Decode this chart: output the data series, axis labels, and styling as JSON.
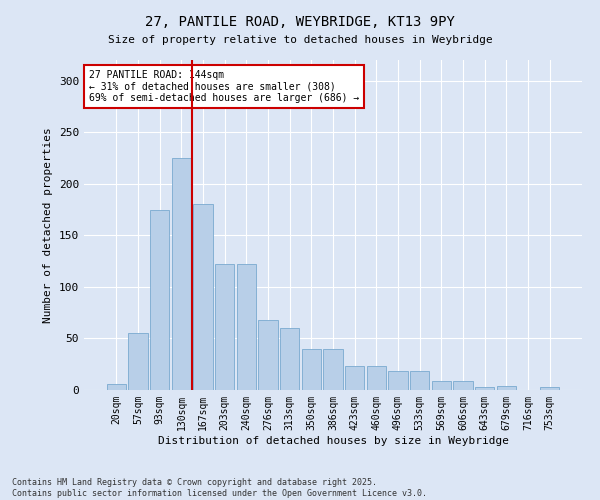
{
  "title_line1": "27, PANTILE ROAD, WEYBRIDGE, KT13 9PY",
  "title_line2": "Size of property relative to detached houses in Weybridge",
  "xlabel": "Distribution of detached houses by size in Weybridge",
  "ylabel": "Number of detached properties",
  "categories": [
    "20sqm",
    "57sqm",
    "93sqm",
    "130sqm",
    "167sqm",
    "203sqm",
    "240sqm",
    "276sqm",
    "313sqm",
    "350sqm",
    "386sqm",
    "423sqm",
    "460sqm",
    "496sqm",
    "533sqm",
    "569sqm",
    "606sqm",
    "643sqm",
    "679sqm",
    "716sqm",
    "753sqm"
  ],
  "values": [
    6,
    55,
    175,
    225,
    180,
    122,
    122,
    68,
    60,
    40,
    40,
    23,
    23,
    18,
    18,
    9,
    9,
    3,
    4,
    0,
    3
  ],
  "bar_color": "#b8cfe8",
  "bar_edge_color": "#7aaad0",
  "background_color": "#dce6f5",
  "grid_color": "#ffffff",
  "redline_index": 3,
  "annotation_line1": "27 PANTILE ROAD: 144sqm",
  "annotation_line2": "← 31% of detached houses are smaller (308)",
  "annotation_line3": "69% of semi-detached houses are larger (686) →",
  "annotation_box_color": "#ffffff",
  "annotation_box_edge_color": "#cc0000",
  "redline_color": "#cc0000",
  "ylim": [
    0,
    320
  ],
  "yticks": [
    0,
    50,
    100,
    150,
    200,
    250,
    300
  ],
  "footnote1": "Contains HM Land Registry data © Crown copyright and database right 2025.",
  "footnote2": "Contains public sector information licensed under the Open Government Licence v3.0."
}
